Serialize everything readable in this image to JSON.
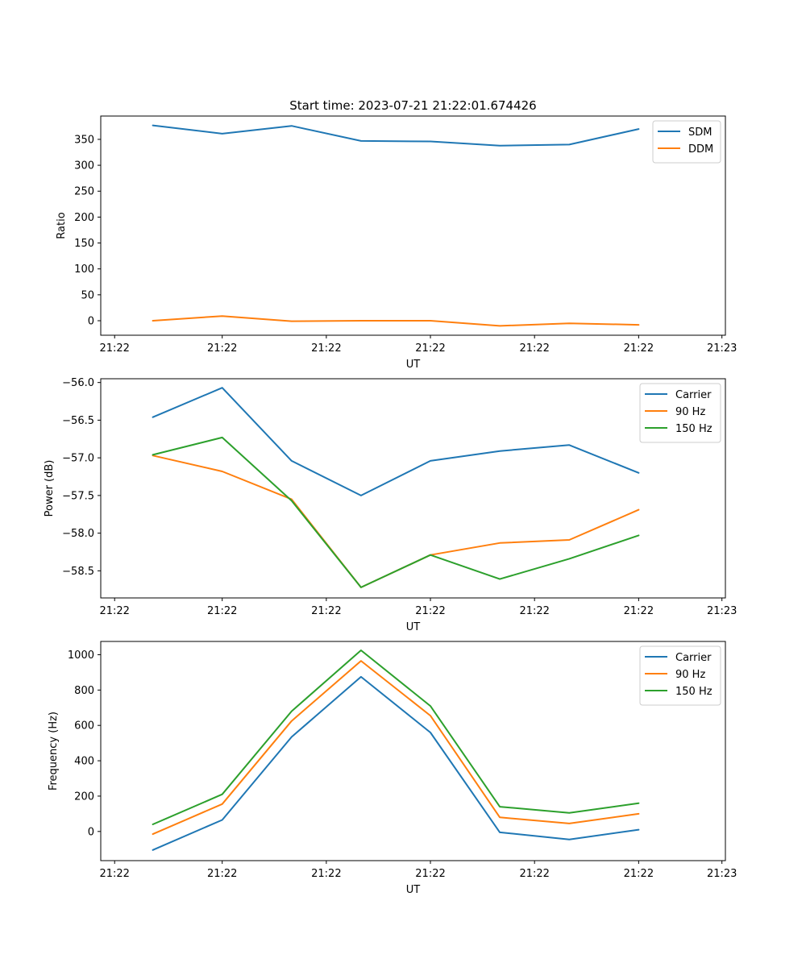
{
  "chart_data": [
    {
      "type": "line",
      "title": "Start time: 2023-07-21 21:22:01.674426",
      "xlabel": "UT",
      "ylabel": "Ratio",
      "ylim": [
        -28,
        395
      ],
      "yticks": [
        0,
        50,
        100,
        150,
        200,
        250,
        300,
        350
      ],
      "xlim": [
        -0.75,
        8.25
      ],
      "xticks": [
        -0.55,
        1,
        2.5,
        4,
        5.5,
        7,
        8.2
      ],
      "xtick_labels": [
        "21:22",
        "21:22",
        "21:22",
        "21:22",
        "21:22",
        "21:22",
        "21:23"
      ],
      "x": [
        0,
        1,
        2,
        3,
        4,
        5,
        6,
        7
      ],
      "legend_loc": "upper right",
      "series": [
        {
          "name": "SDM",
          "color": "#1f77b4",
          "values": [
            377,
            361,
            376,
            347,
            346,
            338,
            340,
            370
          ]
        },
        {
          "name": "DDM",
          "color": "#ff7f0e",
          "values": [
            0,
            9,
            -1,
            0,
            0,
            -10,
            -5,
            -8
          ]
        }
      ]
    },
    {
      "type": "line",
      "title": "",
      "xlabel": "UT",
      "ylabel": "Power (dB)",
      "ylim": [
        -58.86,
        -55.95
      ],
      "yticks": [
        -58.5,
        -58.0,
        -57.5,
        -57.0,
        -56.5,
        -56.0
      ],
      "ytick_labels": [
        "−58.5",
        "−58.0",
        "−57.5",
        "−57.0",
        "−56.5",
        "−56.0"
      ],
      "xlim": [
        -0.75,
        8.25
      ],
      "xticks": [
        -0.55,
        1,
        2.5,
        4,
        5.5,
        7,
        8.2
      ],
      "xtick_labels": [
        "21:22",
        "21:22",
        "21:22",
        "21:22",
        "21:22",
        "21:22",
        "21:23"
      ],
      "x": [
        0,
        1,
        2,
        3,
        4,
        5,
        6,
        7
      ],
      "legend_loc": "upper right",
      "series": [
        {
          "name": "Carrier",
          "color": "#1f77b4",
          "values": [
            -56.46,
            -56.07,
            -57.04,
            -57.5,
            -57.04,
            -56.91,
            -56.83,
            -57.2
          ]
        },
        {
          "name": "90 Hz",
          "color": "#ff7f0e",
          "values": [
            -56.97,
            -57.18,
            -57.55,
            -58.72,
            -58.29,
            -58.13,
            -58.09,
            -57.69
          ]
        },
        {
          "name": "150 Hz",
          "color": "#2ca02c",
          "values": [
            -56.96,
            -56.73,
            -57.57,
            -58.72,
            -58.29,
            -58.61,
            -58.34,
            -58.03
          ]
        }
      ]
    },
    {
      "type": "line",
      "title": "",
      "xlabel": "UT",
      "ylabel": "Frequency (Hz)",
      "ylim": [
        -165,
        1075
      ],
      "yticks": [
        0,
        200,
        400,
        600,
        800,
        1000
      ],
      "xlim": [
        -0.75,
        8.25
      ],
      "xticks": [
        -0.55,
        1,
        2.5,
        4,
        5.5,
        7,
        8.2
      ],
      "xtick_labels": [
        "21:22",
        "21:22",
        "21:22",
        "21:22",
        "21:22",
        "21:22",
        "21:23"
      ],
      "x": [
        0,
        1,
        2,
        3,
        4,
        5,
        6,
        7
      ],
      "legend_loc": "upper right",
      "series": [
        {
          "name": "Carrier",
          "color": "#1f77b4",
          "values": [
            -105,
            65,
            535,
            875,
            560,
            -5,
            -45,
            10
          ]
        },
        {
          "name": "90 Hz",
          "color": "#ff7f0e",
          "values": [
            -15,
            155,
            625,
            965,
            655,
            80,
            45,
            100
          ]
        },
        {
          "name": "150 Hz",
          "color": "#2ca02c",
          "values": [
            40,
            210,
            680,
            1025,
            710,
            140,
            105,
            160
          ]
        }
      ]
    }
  ]
}
